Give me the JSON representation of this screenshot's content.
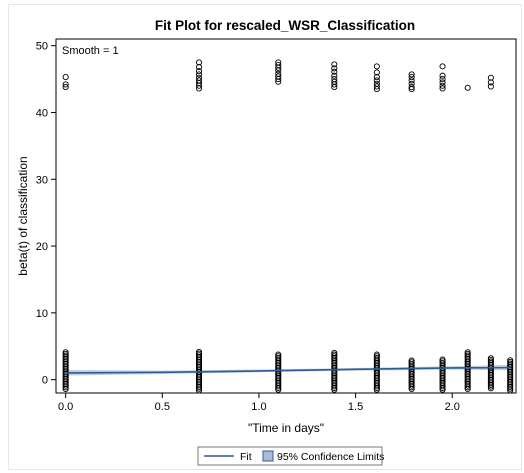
{
  "chart_data": {
    "type": "scatter",
    "title": "Fit Plot for rescaled_WSR_Classification",
    "xlabel": "\"Time in days\"",
    "ylabel": "beta(t) of classification",
    "inset_label": "Smooth = 1",
    "xlim": [
      -0.05,
      2.33
    ],
    "ylim": [
      -2,
      51
    ],
    "xticks": [
      0.0,
      0.5,
      1.0,
      1.5,
      2.0
    ],
    "xtick_labels": [
      "0.0",
      "0.5",
      "1.0",
      "1.5",
      "2.0"
    ],
    "yticks": [
      0,
      10,
      20,
      30,
      40,
      50
    ],
    "ytick_labels": [
      "0",
      "10",
      "20",
      "30",
      "40",
      "50"
    ],
    "grid": false,
    "legend_position": "bottom",
    "series": [
      {
        "name": "Fit",
        "kind": "line",
        "color": "#2b5d9a",
        "x": [
          0.0,
          0.5,
          1.0,
          1.5,
          2.0,
          2.3
        ],
        "y": [
          1.0,
          1.1,
          1.3,
          1.55,
          1.75,
          1.8
        ]
      },
      {
        "name": "95% Confidence Limits",
        "kind": "band",
        "color": "#a9bdd6",
        "x": [
          0.0,
          0.5,
          1.0,
          1.5,
          2.0,
          2.3
        ],
        "lower": [
          0.6,
          0.85,
          1.1,
          1.35,
          1.5,
          1.4
        ],
        "upper": [
          1.45,
          1.35,
          1.5,
          1.75,
          2.0,
          2.2
        ]
      }
    ],
    "observations": [
      {
        "x": 0.0,
        "low_range": [
          -1.4,
          4.3
        ],
        "high_values": [
          45.3,
          44.2,
          43.8
        ]
      },
      {
        "x": 0.69,
        "low_range": [
          -1.6,
          4.3
        ],
        "high_values": [
          47.5,
          46.8,
          46.2,
          45.7,
          45.2,
          44.8,
          44.4,
          44.0,
          43.6
        ]
      },
      {
        "x": 1.1,
        "low_range": [
          -1.5,
          3.9
        ],
        "high_values": [
          47.5,
          47.1,
          46.7,
          46.3,
          45.8,
          45.4,
          45.0,
          44.6
        ]
      },
      {
        "x": 1.39,
        "low_range": [
          -1.5,
          4.1
        ],
        "high_values": [
          47.2,
          46.6,
          46.1,
          45.5,
          45.0,
          44.6,
          44.2,
          43.8
        ]
      },
      {
        "x": 1.61,
        "low_range": [
          -1.5,
          3.8
        ],
        "high_values": [
          46.9,
          46.0,
          45.3,
          44.8,
          44.3,
          43.9,
          43.5
        ]
      },
      {
        "x": 1.79,
        "low_range": [
          -1.4,
          3.0
        ],
        "high_values": [
          45.7,
          45.3,
          44.8,
          44.3,
          43.8,
          43.5
        ]
      },
      {
        "x": 1.95,
        "low_range": [
          -1.5,
          3.0
        ],
        "high_values": [
          46.9,
          45.5,
          45.0,
          44.5,
          44.0,
          43.6
        ]
      },
      {
        "x": 2.08,
        "low_range": [
          -1.4,
          4.2
        ],
        "high_values": [
          43.7
        ]
      },
      {
        "x": 2.2,
        "low_range": [
          -1.3,
          3.4
        ],
        "high_values": [
          45.2,
          44.5,
          43.9
        ]
      },
      {
        "x": 2.3,
        "low_range": [
          -1.6,
          3.0
        ],
        "high_values": []
      }
    ]
  }
}
